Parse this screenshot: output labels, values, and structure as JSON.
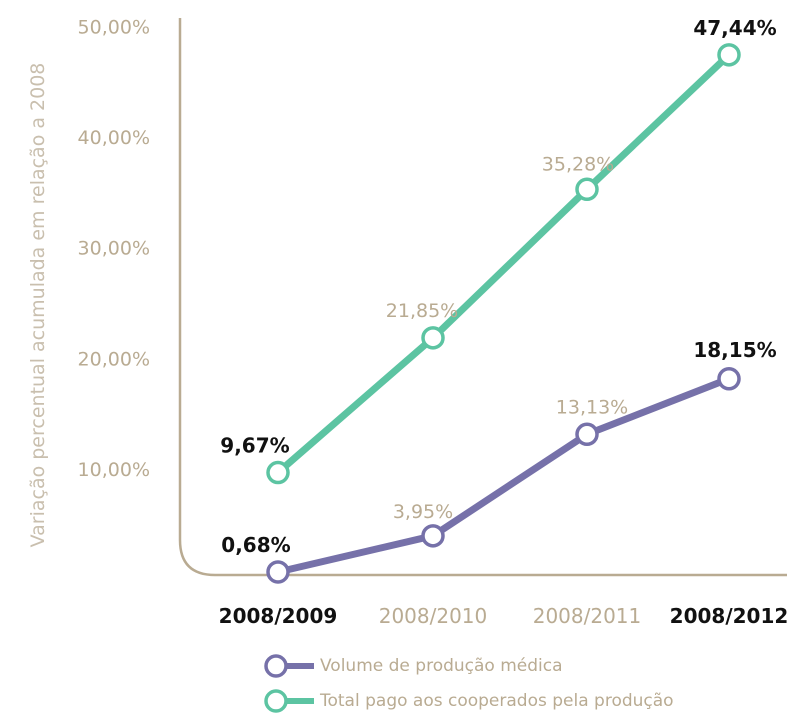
{
  "chart_data": {
    "type": "line",
    "ylabel": "Variação percentual acumulada em relação a 2008",
    "y_ticks": [
      "10,00%",
      "20,00%",
      "30,00%",
      "40,00%",
      "50,00%"
    ],
    "ylim": [
      0,
      50
    ],
    "categories": [
      "2008/2009",
      "2008/2010",
      "2008/2011",
      "2008/2012"
    ],
    "highlighted_categories": [
      "2008/2009",
      "2008/2012"
    ],
    "series": [
      {
        "name": "Volume de produção médica",
        "color": "#7671a9",
        "values": [
          0.68,
          3.95,
          13.13,
          18.15
        ],
        "labels": [
          "0,68%",
          "3,95%",
          "13,13%",
          "18,15%"
        ]
      },
      {
        "name": "Total pago aos cooperados pela produção",
        "color": "#5cc4a2",
        "values": [
          9.67,
          21.85,
          35.28,
          47.44
        ],
        "labels": [
          "9,67%",
          "21,85%",
          "35,28%",
          "47,44%"
        ]
      }
    ],
    "grid": false,
    "legend_position": "bottom"
  },
  "colors": {
    "axis": "#b9ab92",
    "muted_text": "#b9ab92",
    "emphasis_text": "#111111"
  }
}
